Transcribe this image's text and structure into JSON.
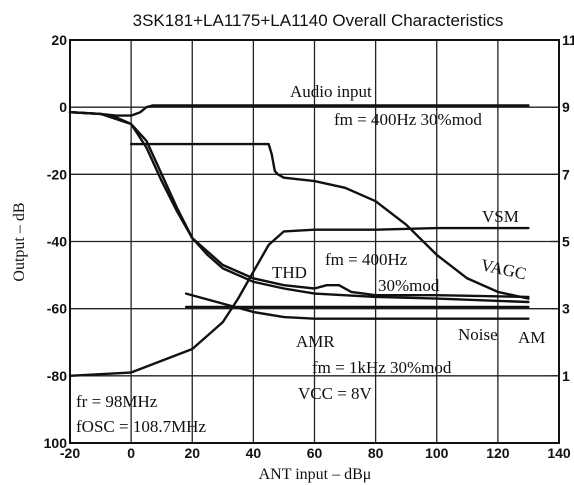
{
  "chart_data": {
    "type": "line",
    "title": "3SK181+LA1175+LA1140 Overall Characteristics",
    "xlabel": "ANT input – dBμ",
    "ylabel": "Output – dB",
    "xlim": [
      -20,
      140
    ],
    "ylim": [
      -100,
      20
    ],
    "y2lim": [
      -1,
      11
    ],
    "x_ticks": [
      "-20",
      "0",
      "20",
      "40",
      "60",
      "80",
      "100",
      "120",
      "140"
    ],
    "y_ticks": [
      "20",
      "0",
      "-20",
      "-40",
      "-60",
      "-80",
      "100"
    ],
    "y2_ticks": [
      "11",
      "9",
      "7",
      "5",
      "3",
      "1"
    ],
    "grid": true,
    "series": [
      {
        "name": "Audio input",
        "axis": "left",
        "x": [
          -20,
          -10,
          -5,
          0,
          3,
          5,
          7,
          20,
          60,
          100,
          130
        ],
        "y": [
          -1.5,
          -2,
          -2.5,
          -2.5,
          -1.5,
          0,
          0.5,
          0.5,
          0.5,
          0.5,
          0.5
        ]
      },
      {
        "name": "VSM",
        "axis": "left",
        "x": [
          -20,
          0,
          20,
          30,
          35,
          40,
          45,
          50,
          60,
          80,
          100,
          130
        ],
        "y": [
          -80,
          -79,
          -72,
          -64,
          -57,
          -49,
          -41,
          -37,
          -36.5,
          -36.5,
          -36,
          -36
        ]
      },
      {
        "name": "VAGC",
        "axis": "right",
        "x": [
          0,
          20,
          45,
          46,
          47,
          48,
          50,
          60,
          70,
          80,
          90,
          100,
          110,
          120,
          130
        ],
        "y": [
          7.9,
          7.9,
          7.9,
          7.6,
          7.1,
          7.0,
          6.9,
          6.8,
          6.6,
          6.2,
          5.5,
          4.6,
          3.9,
          3.5,
          3.3
        ]
      },
      {
        "name": "THD",
        "axis": "left",
        "x": [
          -20,
          -10,
          0,
          5,
          10,
          15,
          20,
          30,
          40,
          50,
          60,
          64,
          68,
          72,
          80,
          100,
          130
        ],
        "y": [
          -1.5,
          -2,
          -5,
          -10,
          -20,
          -30,
          -39,
          -47,
          -51,
          -53,
          -54,
          -53,
          -53,
          -55,
          -56,
          -56,
          -56.5
        ]
      },
      {
        "name": "Noise",
        "axis": "left",
        "x": [
          -20,
          -10,
          -5,
          0,
          5,
          10,
          15,
          20,
          25,
          30,
          40,
          50,
          60,
          80,
          100,
          130
        ],
        "y": [
          -1.5,
          -2,
          -3,
          -5,
          -12,
          -22,
          -31,
          -39,
          -44,
          -48,
          -52,
          -54,
          -55.5,
          -56.5,
          -57,
          -58
        ]
      },
      {
        "name": "AMR",
        "axis": "left",
        "x": [
          18,
          30,
          40,
          50,
          60,
          80,
          100,
          130
        ],
        "y": [
          -55.5,
          -58.5,
          -61,
          -62.5,
          -63,
          -63,
          -63,
          -63
        ]
      },
      {
        "name": "AM",
        "axis": "left",
        "x": [
          18,
          30,
          40,
          60,
          80,
          100,
          130
        ],
        "y": [
          -59.5,
          -59.5,
          -59.5,
          -59.5,
          -59.5,
          -59.5,
          -59.5
        ]
      }
    ],
    "annotations": {
      "audio_input": "Audio input",
      "fm_top": "fm = 400Hz   30%mod",
      "vsm": "VSM",
      "vagc": "VAGC",
      "thd": "THD",
      "fm_mid": "fm = 400Hz",
      "mod_mid": "30%mod",
      "noise": "Noise",
      "am": "AM",
      "amr": "AMR",
      "fm_low": "fm = 1kHz   30%mod",
      "vcc": "VCC = 8V",
      "fr": "fr = 98MHz",
      "fosc": "fOSC = 108.7MHz"
    }
  }
}
